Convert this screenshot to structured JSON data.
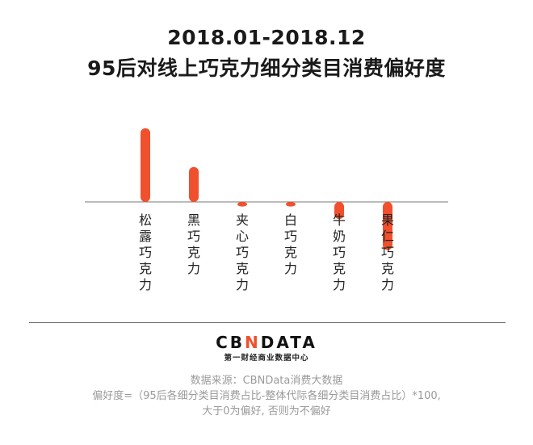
{
  "title": {
    "line1": "2018.01-2018.12",
    "line2": "95后对线上巧克力细分类目消费偏好度"
  },
  "chart_data": {
    "type": "bar",
    "categories": [
      "松露巧克力",
      "黑巧克力",
      "夹心巧克力",
      "白巧克力",
      "牛奶巧克力",
      "果仁巧克力"
    ],
    "values": [
      95,
      45,
      -6,
      -6,
      -22,
      -62
    ],
    "ylim": [
      -100,
      100
    ],
    "grid": false,
    "bar_color": "#f0502d"
  },
  "logo": {
    "prefix": "CB",
    "accent": "N",
    "suffix": "DATA",
    "subtitle": "第一财经商业数据中心"
  },
  "notes": {
    "source": "数据来源：CBNData消费大数据",
    "formula": "偏好度=（95后各细分类目消费占比-整体代际各细分类目消费占比）*100,",
    "rule": "大于0为偏好, 否则为不偏好"
  }
}
